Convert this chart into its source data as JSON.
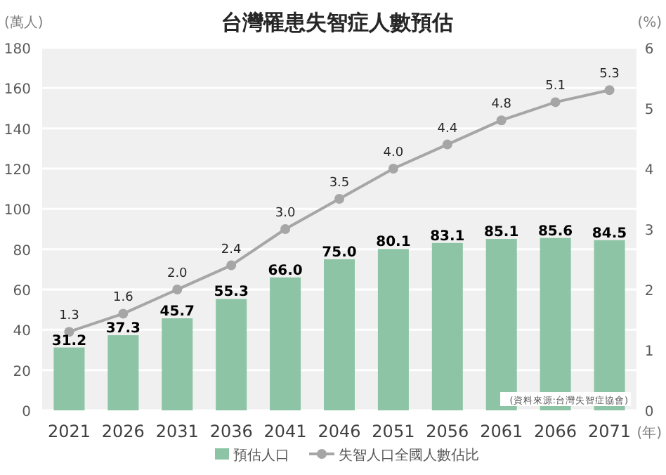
{
  "chart_data": {
    "type": "bar",
    "title": "台灣罹患失智症人數預估",
    "ylabel": "(萬人)",
    "y2label": "(%)",
    "xlabel": "(年)",
    "categories": [
      "2021",
      "2026",
      "2031",
      "2036",
      "2041",
      "2046",
      "2051",
      "2056",
      "2061",
      "2066",
      "2071"
    ],
    "series": [
      {
        "name": "預估人口",
        "color": "#8dc4a5",
        "values": [
          31.2,
          37.3,
          45.7,
          55.3,
          66.0,
          75.0,
          80.1,
          83.1,
          85.1,
          85.6,
          84.5
        ],
        "value_labels": [
          "31.2",
          "37.3",
          "45.7",
          "55.3",
          "66.0",
          "75.0",
          "80.1",
          "83.1",
          "85.1",
          "85.6",
          "84.5"
        ]
      },
      {
        "name": "失智人口全國人數佔比",
        "type": "line",
        "axis": "y2",
        "color": "#a6a6a6",
        "values": [
          1.3,
          1.6,
          2.0,
          2.4,
          3.0,
          3.5,
          4.0,
          4.4,
          4.8,
          5.1,
          5.3
        ],
        "value_labels": [
          "1.3",
          "1.6",
          "2.0",
          "2.4",
          "3.0",
          "3.5",
          "4.0",
          "4.4",
          "4.8",
          "5.1",
          "5.3"
        ]
      }
    ],
    "ylim": [
      0,
      180
    ],
    "yticks": [
      0,
      20,
      40,
      60,
      80,
      100,
      120,
      140,
      160,
      180
    ],
    "y2lim": [
      0,
      6
    ],
    "y2ticks": [
      0,
      1,
      2,
      3,
      4,
      5,
      6
    ],
    "grid": "y",
    "legend": "bottom",
    "marker": "circle",
    "annotations": [
      "(資料來源:台灣失智症協會)"
    ]
  }
}
